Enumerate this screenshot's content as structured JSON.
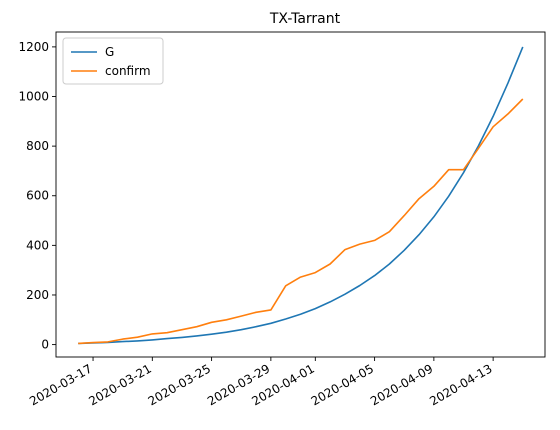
{
  "chart_data": {
    "type": "line",
    "title": "TX-Tarrant",
    "xlabel": "",
    "ylabel": "",
    "x": [
      "2020-03-16",
      "2020-03-17",
      "2020-03-18",
      "2020-03-19",
      "2020-03-20",
      "2020-03-21",
      "2020-03-22",
      "2020-03-23",
      "2020-03-24",
      "2020-03-25",
      "2020-03-26",
      "2020-03-27",
      "2020-03-28",
      "2020-03-29",
      "2020-03-30",
      "2020-03-31",
      "2020-04-01",
      "2020-04-02",
      "2020-04-03",
      "2020-04-04",
      "2020-04-05",
      "2020-04-06",
      "2020-04-07",
      "2020-04-08",
      "2020-04-09",
      "2020-04-10",
      "2020-04-11",
      "2020-04-12",
      "2020-04-13",
      "2020-04-14",
      "2020-04-15"
    ],
    "x_ticks": [
      "2020-03-17",
      "2020-03-21",
      "2020-03-25",
      "2020-03-29",
      "2020-04-01",
      "2020-04-05",
      "2020-04-09",
      "2020-04-13"
    ],
    "y_ticks": [
      0,
      200,
      400,
      600,
      800,
      1000,
      1200
    ],
    "ylim": [
      -50,
      1260
    ],
    "legend_position": "top-left",
    "grid": false,
    "series": [
      {
        "name": "G",
        "color": "#1f77b4",
        "values": [
          5,
          7,
          9,
          12,
          15,
          19,
          24,
          29,
          35,
          42,
          50,
          60,
          72,
          86,
          103,
          122,
          145,
          172,
          203,
          238,
          278,
          325,
          380,
          443,
          515,
          598,
          693,
          800,
          920,
          1055,
          1200
        ]
      },
      {
        "name": "confirm",
        "color": "#ff7f0e",
        "values": [
          5,
          8,
          11,
          22,
          30,
          43,
          48,
          60,
          72,
          90,
          100,
          115,
          130,
          140,
          237,
          272,
          290,
          325,
          383,
          405,
          420,
          455,
          520,
          588,
          638,
          705,
          705,
          790,
          878,
          930,
          990
        ]
      }
    ]
  }
}
